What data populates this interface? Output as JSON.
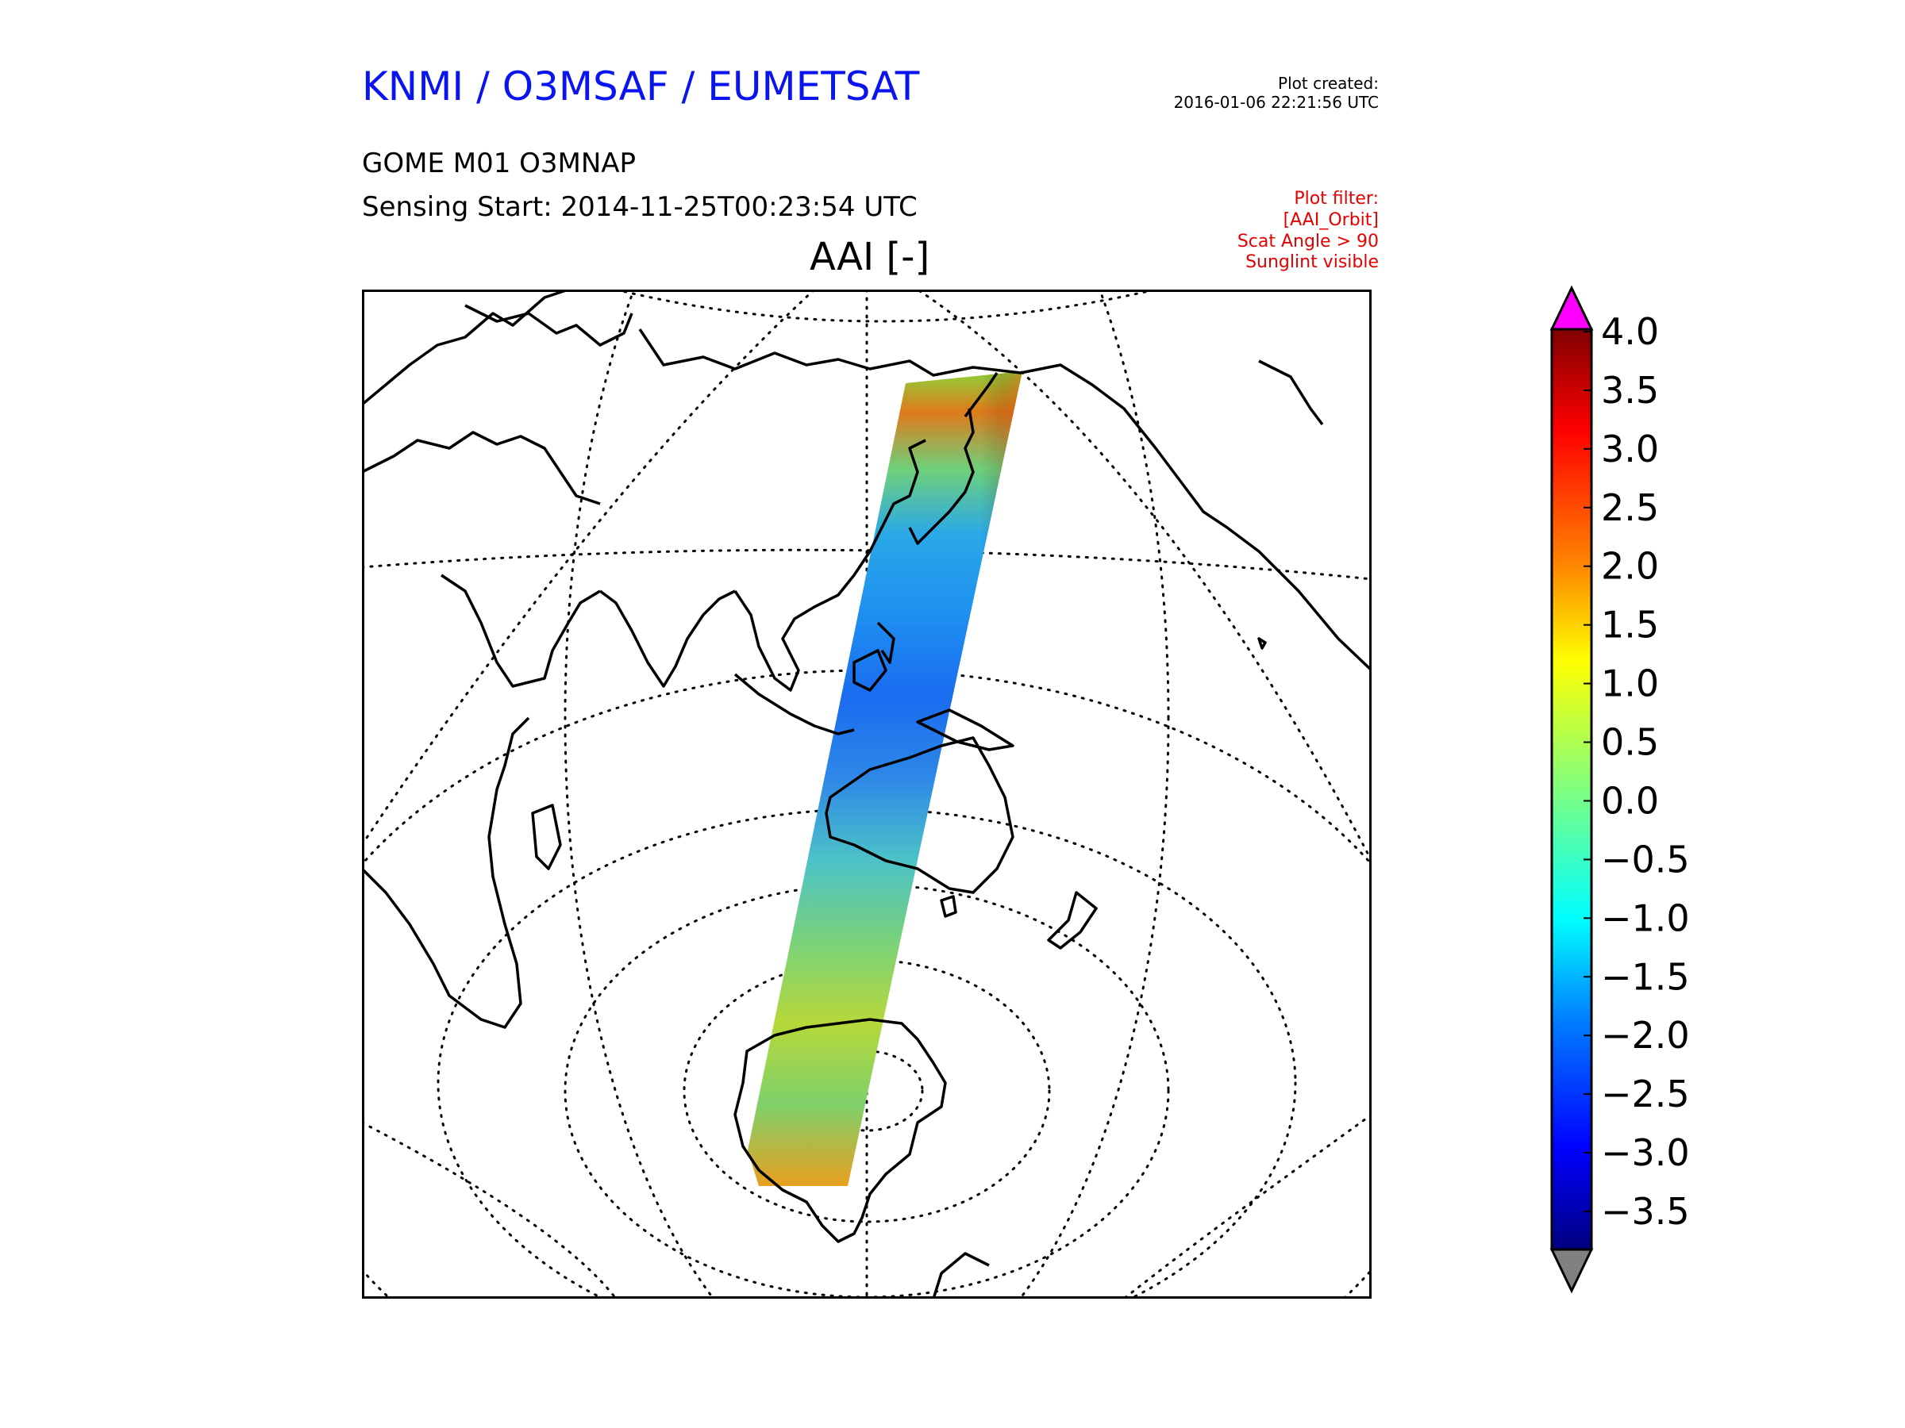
{
  "header": {
    "organization": "KNMI / O3MSAF / EUMETSAT",
    "created_label": "Plot created:",
    "created_value": "2016-01-06 22:21:56 UTC",
    "product": "GOME M01 O3MNAP",
    "sensing_start": "Sensing Start: 2014-11-25T00:23:54 UTC",
    "org_color": "#0a14ee",
    "filter_color": "#e60000"
  },
  "filter": {
    "title": "Plot filter:",
    "lines": [
      "[AAI_Orbit]",
      "Scat Angle > 90",
      "Sunglint visible"
    ]
  },
  "map": {
    "title": "AAI [-]",
    "projection": "azimuthal",
    "graticule": "dotted",
    "coastlines": "black"
  },
  "colorbar": {
    "ticks": [
      "4.0",
      "3.5",
      "3.0",
      "2.5",
      "2.0",
      "1.5",
      "1.0",
      "0.5",
      "0.0",
      "−0.5",
      "−1.0",
      "−1.5",
      "−2.0",
      "−2.5",
      "−3.0",
      "−3.5"
    ],
    "min": -3.5,
    "max": 4.0,
    "over_color": "#ff00ff",
    "under_color": "#808080",
    "colormap": "jet"
  }
}
